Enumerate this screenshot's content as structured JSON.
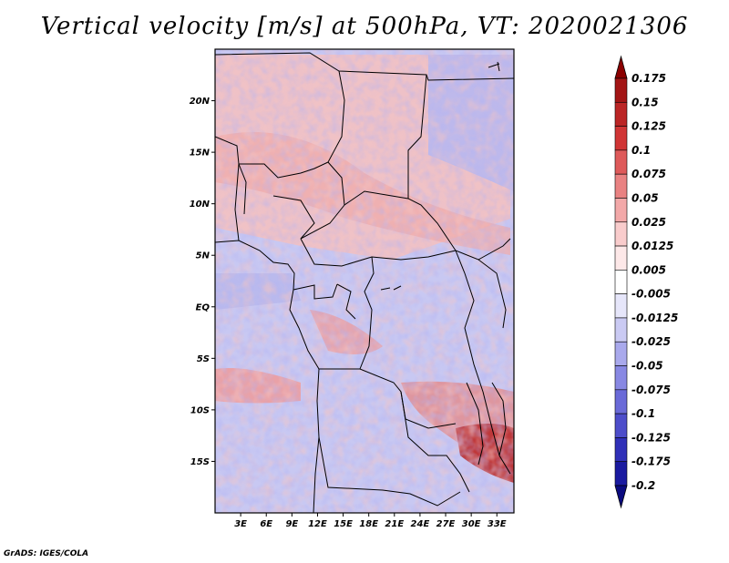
{
  "title": "Vertical velocity [m/s] at 500hPa, VT: 2020021306",
  "footer": "GrADS: IGES/COLA",
  "map": {
    "lon_range": [
      0,
      35
    ],
    "lat_range": [
      -20,
      25
    ],
    "lat_labels": [
      "20N",
      "15N",
      "10N",
      "5N",
      "EQ",
      "5S",
      "10S",
      "15S"
    ],
    "lat_values": [
      20,
      15,
      10,
      5,
      0,
      -5,
      -10,
      -15
    ],
    "lon_labels": [
      "3E",
      "6E",
      "9E",
      "12E",
      "15E",
      "18E",
      "21E",
      "24E",
      "27E",
      "30E",
      "33E"
    ],
    "lon_values": [
      3,
      6,
      9,
      12,
      15,
      18,
      21,
      24,
      27,
      30,
      33
    ]
  },
  "colorbar": {
    "labels": [
      "0.175",
      "0.15",
      "0.125",
      "0.1",
      "0.075",
      "0.05",
      "0.025",
      "0.0125",
      "0.005",
      "-0.005",
      "-0.0125",
      "-0.025",
      "-0.05",
      "-0.075",
      "-0.1",
      "-0.125",
      "-0.175",
      "-0.2"
    ],
    "colors": [
      "#8b0000",
      "#a31515",
      "#bb2525",
      "#d03535",
      "#de5a5a",
      "#e98282",
      "#f2a8a8",
      "#f9cccc",
      "#fde8e8",
      "#ffffff",
      "#e6e6fa",
      "#cacaf3",
      "#a9a9ec",
      "#8888e3",
      "#6a6ad8",
      "#4d4dca",
      "#3030b8",
      "#1a1aa0",
      "#0b0b80"
    ]
  }
}
